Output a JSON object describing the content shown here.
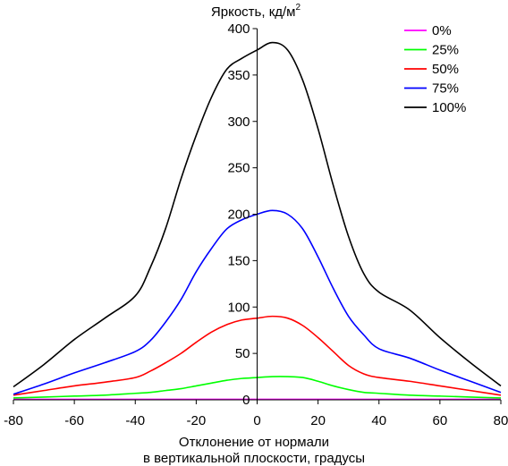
{
  "chart_data": {
    "type": "line",
    "title": "",
    "ylabel": "Яркость, кд/м",
    "ylabel_sup": "2",
    "xlabel_lines": [
      "Отклонение от нормали",
      "в вертикальной плоскости, градусы"
    ],
    "xlim": [
      -80,
      80
    ],
    "ylim": [
      0,
      400
    ],
    "x_ticks": [
      -80,
      -60,
      -40,
      -20,
      0,
      20,
      40,
      60,
      80
    ],
    "y_ticks": [
      0,
      50,
      100,
      150,
      200,
      250,
      300,
      350,
      400
    ],
    "legend_position": "top-right",
    "grid": false,
    "x": [
      -80,
      -70,
      -60,
      -50,
      -40,
      -35,
      -30,
      -25,
      -20,
      -15,
      -10,
      -5,
      0,
      5,
      10,
      15,
      20,
      25,
      30,
      35,
      40,
      50,
      60,
      70,
      80
    ],
    "series": [
      {
        "name": "0%",
        "color": "#ff00ff",
        "values": [
          0.5,
          0.5,
          0.5,
          0.5,
          0.5,
          0.5,
          0.5,
          0.5,
          0.5,
          0.5,
          0.5,
          0.5,
          0.5,
          0.5,
          0.5,
          0.5,
          0.5,
          0.5,
          0.5,
          0.5,
          0.5,
          0.5,
          0.5,
          0.5,
          0.5
        ]
      },
      {
        "name": "25%",
        "color": "#00ff00",
        "values": [
          2,
          3,
          4,
          5,
          7,
          8,
          10,
          12,
          15,
          18,
          21,
          23,
          24,
          25,
          25,
          24,
          20,
          15,
          11,
          8,
          7,
          5,
          4,
          3,
          2
        ]
      },
      {
        "name": "50%",
        "color": "#ff0000",
        "values": [
          5,
          10,
          15,
          19,
          24,
          31,
          40,
          50,
          62,
          73,
          81,
          86,
          88,
          90,
          88,
          80,
          67,
          52,
          37,
          28,
          24,
          20,
          15,
          10,
          5
        ]
      },
      {
        "name": "75%",
        "color": "#0000ff",
        "values": [
          6,
          17,
          29,
          40,
          52,
          64,
          84,
          108,
          138,
          163,
          184,
          194,
          200,
          204,
          200,
          184,
          154,
          120,
          90,
          70,
          55,
          45,
          32,
          20,
          8
        ]
      },
      {
        "name": "100%",
        "color": "#000000",
        "values": [
          14,
          38,
          65,
          88,
          112,
          143,
          185,
          238,
          285,
          326,
          356,
          368,
          377,
          385,
          377,
          344,
          292,
          231,
          176,
          136,
          116,
          97,
          67,
          40,
          15
        ]
      }
    ]
  }
}
